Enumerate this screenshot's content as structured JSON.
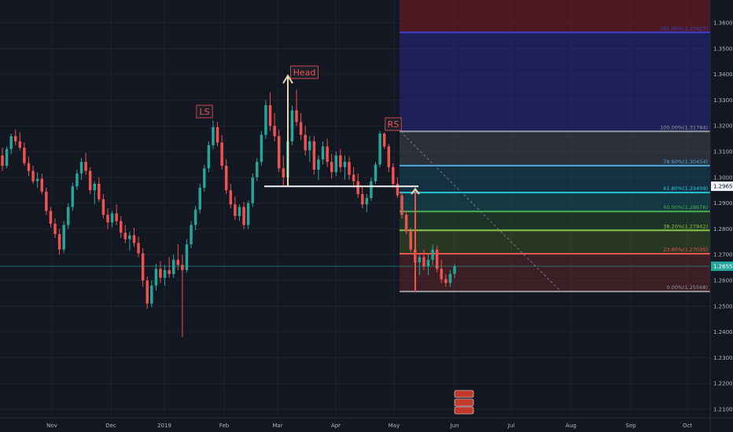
{
  "chart_data": {
    "type": "candlestick",
    "instrument_note": "",
    "x_axis_labels": [
      "Nov",
      "Dec",
      "2019",
      "Feb",
      "Mar",
      "Apr",
      "May",
      "Jun",
      "Jul",
      "Aug",
      "Sep",
      "Oct"
    ],
    "y_axis_ticks": [
      "1.36000",
      "1.35000",
      "1.34000",
      "1.33000",
      "1.32000",
      "1.31000",
      "1.30000",
      "1.29000",
      "1.28000",
      "1.27000",
      "1.26000",
      "1.25000",
      "1.24000",
      "1.23000",
      "1.22000",
      "1.21000"
    ],
    "y_tick_values": [
      1.36,
      1.35,
      1.34,
      1.33,
      1.32,
      1.31,
      1.3,
      1.29,
      1.28,
      1.27,
      1.26,
      1.25,
      1.24,
      1.23,
      1.22,
      1.21
    ],
    "ylim": [
      1.2055,
      1.3665
    ],
    "price_labels": [
      {
        "value": 1.29655,
        "text": "1.29655",
        "style": "white"
      },
      {
        "value": 1.2655,
        "text": "1.26550",
        "style": "teal"
      }
    ],
    "neckline": {
      "value": 1.2965,
      "from_month": "Feb",
      "to_month": "May"
    },
    "pattern_labels": [
      {
        "text": "LS",
        "month": "Jan-end",
        "value": 1.3235
      },
      {
        "text": "Head",
        "month": "Mar-mid",
        "value": 1.3395
      },
      {
        "text": "RS",
        "month": "May-start",
        "value": 1.3195
      }
    ],
    "fib_levels": [
      {
        "label": "161.80%(1.35625)",
        "value": 1.35625,
        "color": "#3d3fd6"
      },
      {
        "label": "100.00%(1.31784)",
        "value": 1.31784,
        "color": "#9598a1"
      },
      {
        "label": "78.60%(1.30454)",
        "value": 1.30454,
        "color": "#4fa8d8"
      },
      {
        "label": "61.80%(1.29409)",
        "value": 1.29409,
        "color": "#26c6da"
      },
      {
        "label": "50.00%(1.28676)",
        "value": 1.28676,
        "color": "#4caf50"
      },
      {
        "label": "38.20%(1.27942)",
        "value": 1.27942,
        "color": "#8bc34a"
      },
      {
        "label": "23.60%(1.27035)",
        "value": 1.27035,
        "color": "#ef5350"
      },
      {
        "label": "0.00%(1.25568)",
        "value": 1.25568,
        "color": "#9598a1"
      }
    ],
    "fib_top_value": 1.3665,
    "bottom_badges": [
      "",
      ""
    ],
    "candles_ohlc": [
      [
        1.3085,
        1.3115,
        1.3025,
        1.3045
      ],
      [
        1.3045,
        1.312,
        1.3035,
        1.311
      ],
      [
        1.311,
        1.317,
        1.309,
        1.316
      ],
      [
        1.316,
        1.3185,
        1.3125,
        1.314
      ],
      [
        1.314,
        1.3175,
        1.3105,
        1.3115
      ],
      [
        1.3115,
        1.3135,
        1.3045,
        1.3055
      ],
      [
        1.3055,
        1.308,
        1.3005,
        1.3025
      ],
      [
        1.3025,
        1.3045,
        1.2975,
        1.2985
      ],
      [
        1.2985,
        1.302,
        1.296,
        1.2995
      ],
      [
        1.2995,
        1.3015,
        1.2935,
        1.2945
      ],
      [
        1.2945,
        1.296,
        1.2855,
        1.287
      ],
      [
        1.287,
        1.2885,
        1.2805,
        1.282
      ],
      [
        1.282,
        1.284,
        1.2765,
        1.278
      ],
      [
        1.278,
        1.28,
        1.27,
        1.272
      ],
      [
        1.272,
        1.283,
        1.2705,
        1.2815
      ],
      [
        1.2815,
        1.29,
        1.28,
        1.2885
      ],
      [
        1.2885,
        1.298,
        1.287,
        1.2965
      ],
      [
        1.2965,
        1.303,
        1.295,
        1.3015
      ],
      [
        1.3015,
        1.3075,
        1.299,
        1.306
      ],
      [
        1.306,
        1.3095,
        1.301,
        1.3025
      ],
      [
        1.3025,
        1.304,
        1.2935,
        1.295
      ],
      [
        1.295,
        1.2985,
        1.2895,
        1.2975
      ],
      [
        1.2975,
        1.3,
        1.2905,
        1.2915
      ],
      [
        1.2915,
        1.2935,
        1.284,
        1.2855
      ],
      [
        1.2855,
        1.288,
        1.28,
        1.2825
      ],
      [
        1.2825,
        1.287,
        1.2805,
        1.286
      ],
      [
        1.286,
        1.2895,
        1.2815,
        1.283
      ],
      [
        1.283,
        1.285,
        1.2765,
        1.2785
      ],
      [
        1.2785,
        1.2815,
        1.2745,
        1.276
      ],
      [
        1.276,
        1.279,
        1.2715,
        1.2775
      ],
      [
        1.2775,
        1.2805,
        1.273,
        1.2745
      ],
      [
        1.2745,
        1.277,
        1.269,
        1.2705
      ],
      [
        1.2705,
        1.2725,
        1.2575,
        1.26
      ],
      [
        1.26,
        1.2615,
        1.249,
        1.251
      ],
      [
        1.251,
        1.26,
        1.2495,
        1.258
      ],
      [
        1.258,
        1.2665,
        1.256,
        1.2645
      ],
      [
        1.2645,
        1.2675,
        1.259,
        1.261
      ],
      [
        1.261,
        1.266,
        1.258,
        1.264
      ],
      [
        1.264,
        1.269,
        1.261,
        1.2625
      ],
      [
        1.2625,
        1.27,
        1.261,
        1.268
      ],
      [
        1.268,
        1.274,
        1.264,
        1.266
      ],
      [
        1.266,
        1.27,
        1.238,
        1.264
      ],
      [
        1.264,
        1.276,
        1.263,
        1.274
      ],
      [
        1.274,
        1.283,
        1.2725,
        1.2815
      ],
      [
        1.2815,
        1.289,
        1.2795,
        1.2875
      ],
      [
        1.2875,
        1.2975,
        1.286,
        1.296
      ],
      [
        1.296,
        1.305,
        1.2945,
        1.3035
      ],
      [
        1.3035,
        1.314,
        1.302,
        1.3125
      ],
      [
        1.3125,
        1.322,
        1.311,
        1.3195
      ],
      [
        1.3195,
        1.3215,
        1.312,
        1.3135
      ],
      [
        1.3135,
        1.3165,
        1.303,
        1.3045
      ],
      [
        1.3045,
        1.307,
        1.2935,
        1.295
      ],
      [
        1.295,
        1.2975,
        1.288,
        1.2895
      ],
      [
        1.2895,
        1.2925,
        1.2835,
        1.285
      ],
      [
        1.285,
        1.2895,
        1.283,
        1.2885
      ],
      [
        1.2885,
        1.2905,
        1.28,
        1.2815
      ],
      [
        1.2815,
        1.291,
        1.28,
        1.29
      ],
      [
        1.29,
        1.3015,
        1.2885,
        1.3
      ],
      [
        1.3,
        1.3075,
        1.2985,
        1.306
      ],
      [
        1.306,
        1.318,
        1.3045,
        1.3165
      ],
      [
        1.3165,
        1.33,
        1.315,
        1.328
      ],
      [
        1.328,
        1.333,
        1.318,
        1.32
      ],
      [
        1.32,
        1.325,
        1.314,
        1.316
      ],
      [
        1.316,
        1.3185,
        1.302,
        1.3035
      ],
      [
        1.3035,
        1.3085,
        1.2965,
        1.3
      ],
      [
        1.3,
        1.3155,
        1.2985,
        1.314
      ],
      [
        1.314,
        1.328,
        1.3125,
        1.326
      ],
      [
        1.326,
        1.334,
        1.32,
        1.3215
      ],
      [
        1.3215,
        1.325,
        1.3145,
        1.3165
      ],
      [
        1.3165,
        1.32,
        1.3085,
        1.3105
      ],
      [
        1.3105,
        1.316,
        1.306,
        1.314
      ],
      [
        1.314,
        1.316,
        1.301,
        1.303
      ],
      [
        1.303,
        1.3085,
        1.299,
        1.307
      ],
      [
        1.307,
        1.314,
        1.305,
        1.312
      ],
      [
        1.312,
        1.315,
        1.304,
        1.306
      ],
      [
        1.306,
        1.309,
        1.2995,
        1.302
      ],
      [
        1.302,
        1.31,
        1.3005,
        1.3085
      ],
      [
        1.3085,
        1.311,
        1.302,
        1.304
      ],
      [
        1.304,
        1.3085,
        1.299,
        1.306
      ],
      [
        1.306,
        1.308,
        1.299,
        1.301
      ],
      [
        1.301,
        1.304,
        1.296,
        1.2985
      ],
      [
        1.2985,
        1.3015,
        1.292,
        1.2935
      ],
      [
        1.2935,
        1.2965,
        1.288,
        1.2895
      ],
      [
        1.2895,
        1.2935,
        1.2865,
        1.292
      ],
      [
        1.292,
        1.3,
        1.291,
        1.2985
      ],
      [
        1.2985,
        1.306,
        1.2975,
        1.305
      ],
      [
        1.305,
        1.318,
        1.304,
        1.317
      ],
      [
        1.317,
        1.3175,
        1.311,
        1.312
      ],
      [
        1.312,
        1.313,
        1.302,
        1.304
      ],
      [
        1.304,
        1.3055,
        1.296,
        1.2975
      ],
      [
        1.2975,
        1.3,
        1.292,
        1.293
      ],
      [
        1.293,
        1.2945,
        1.284,
        1.2855
      ],
      [
        1.2855,
        1.287,
        1.278,
        1.279
      ],
      [
        1.279,
        1.2805,
        1.271,
        1.272
      ],
      [
        1.272,
        1.274,
        1.266,
        1.267
      ],
      [
        1.267,
        1.27,
        1.262,
        1.269
      ],
      [
        1.269,
        1.272,
        1.264,
        1.2655
      ],
      [
        1.2655,
        1.27,
        1.262,
        1.268
      ],
      [
        1.268,
        1.274,
        1.266,
        1.272
      ],
      [
        1.272,
        1.2735,
        1.263,
        1.2645
      ],
      [
        1.2645,
        1.268,
        1.259,
        1.2605
      ],
      [
        1.2605,
        1.2625,
        1.2575,
        1.259
      ],
      [
        1.259,
        1.264,
        1.2575,
        1.2625
      ],
      [
        1.2625,
        1.2665,
        1.261,
        1.2655
      ]
    ]
  }
}
